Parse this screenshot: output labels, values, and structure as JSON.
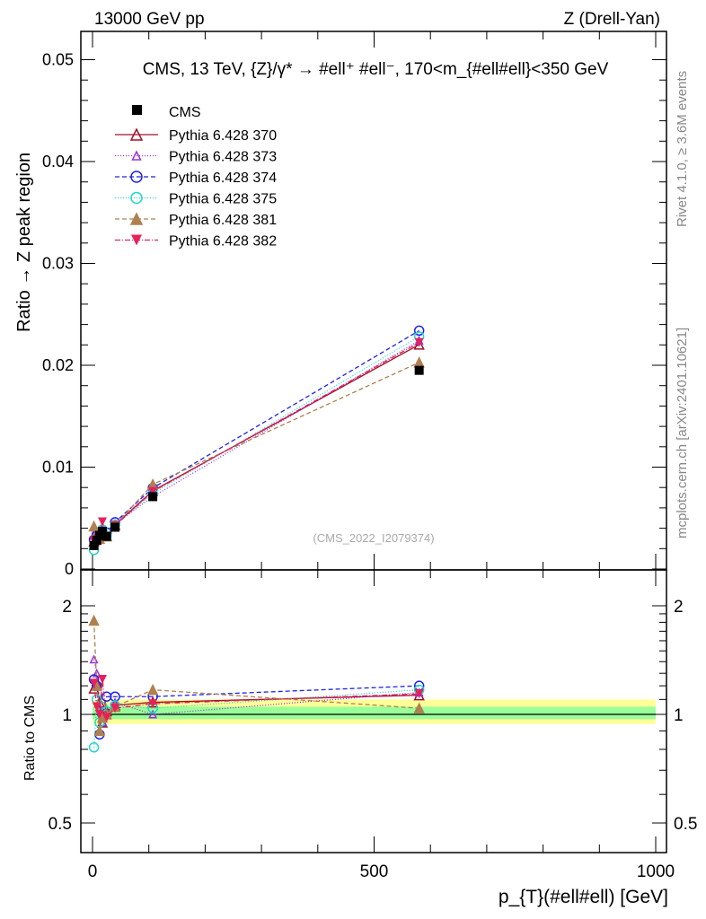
{
  "header": {
    "left": "13000 GeV pp",
    "right": "Z (Drell-Yan)"
  },
  "side": {
    "rivet": "Rivet 4.1.0, ≥ 3.6M events",
    "mcplots": "mcplots.cern.ch [arXiv:2401.10621]"
  },
  "chart_data": {
    "type": "line",
    "title": "CMS, 13 TeV, {Z}/γ* → #ell⁺ #ell⁻, 170<m_{#ell#ell}<350 GeV",
    "analysis": "(CMS_2022_I2079374)",
    "xlabel": "p_{T}(#ell#ell) [GeV]",
    "ylabel": "Ratio → Z peak region",
    "ratio_ylabel": "Ratio to CMS",
    "xlim": [
      -20,
      1020
    ],
    "ylim": [
      0,
      0.0525
    ],
    "ratio_ylim": [
      0.42,
      2.3
    ],
    "ratio_scale": "log",
    "xticks": [
      {
        "v": 0,
        "label": "0"
      },
      {
        "v": 500,
        "label": "500"
      },
      {
        "v": 1000,
        "label": "1000"
      }
    ],
    "yticks": [
      {
        "v": 0,
        "label": "0"
      },
      {
        "v": 0.01,
        "label": "0.01"
      },
      {
        "v": 0.02,
        "label": "0.02"
      },
      {
        "v": 0.03,
        "label": "0.03"
      },
      {
        "v": 0.04,
        "label": "0.04"
      },
      {
        "v": 0.05,
        "label": "0.05"
      }
    ],
    "ratio_yticks": [
      {
        "v": 0.5,
        "label": "0.5"
      },
      {
        "v": 1,
        "label": "1"
      },
      {
        "v": 2,
        "label": "2"
      }
    ],
    "legend_position": "top-left",
    "x": [
      2.5,
      7.5,
      12.5,
      17.5,
      25,
      40,
      107,
      580
    ],
    "data": {
      "name": "CMS",
      "values": [
        0.0023,
        0.0028,
        0.0033,
        0.0037,
        0.0032,
        0.0041,
        0.0071,
        0.0195
      ],
      "band_inner": [
        0.97,
        1.05
      ],
      "band_outer": [
        0.94,
        1.1
      ]
    },
    "series": [
      {
        "name": "Pythia 6.428 370",
        "color": "#a0102a",
        "dash": "",
        "marker": "tri-open",
        "ratio": [
          1.18,
          1.22,
          1.08,
          0.95,
          1.02,
          1.06,
          1.08,
          1.13
        ]
      },
      {
        "name": "Pythia 6.428 373",
        "color": "#9a30e0",
        "dash": "1,2",
        "marker": "tri-open-small",
        "ratio": [
          1.42,
          1.3,
          1.05,
          0.95,
          1.0,
          1.08,
          1.0,
          1.15
        ]
      },
      {
        "name": "Pythia 6.428 374",
        "color": "#2020e8",
        "dash": "5,3",
        "marker": "circle-open",
        "ratio": [
          1.25,
          1.2,
          0.88,
          1.0,
          1.12,
          1.12,
          1.12,
          1.2
        ]
      },
      {
        "name": "Pythia 6.428 375",
        "color": "#20d8c8",
        "dash": "1,2",
        "marker": "circle-open",
        "ratio": [
          0.81,
          1.1,
          0.95,
          1.05,
          1.02,
          1.06,
          1.04,
          1.17
        ]
      },
      {
        "name": "Pythia 6.428 381",
        "color": "#b08050",
        "dash": "5,3",
        "marker": "tri-filled",
        "ratio": [
          1.82,
          1.2,
          0.9,
          0.98,
          1.0,
          1.05,
          1.17,
          1.04
        ]
      },
      {
        "name": "Pythia 6.428 382",
        "color": "#e8205a",
        "dash": "6,2,1,2",
        "marker": "tri-down-filled",
        "ratio": [
          1.22,
          1.05,
          1.0,
          1.25,
          0.98,
          1.04,
          1.07,
          1.14
        ]
      }
    ]
  }
}
